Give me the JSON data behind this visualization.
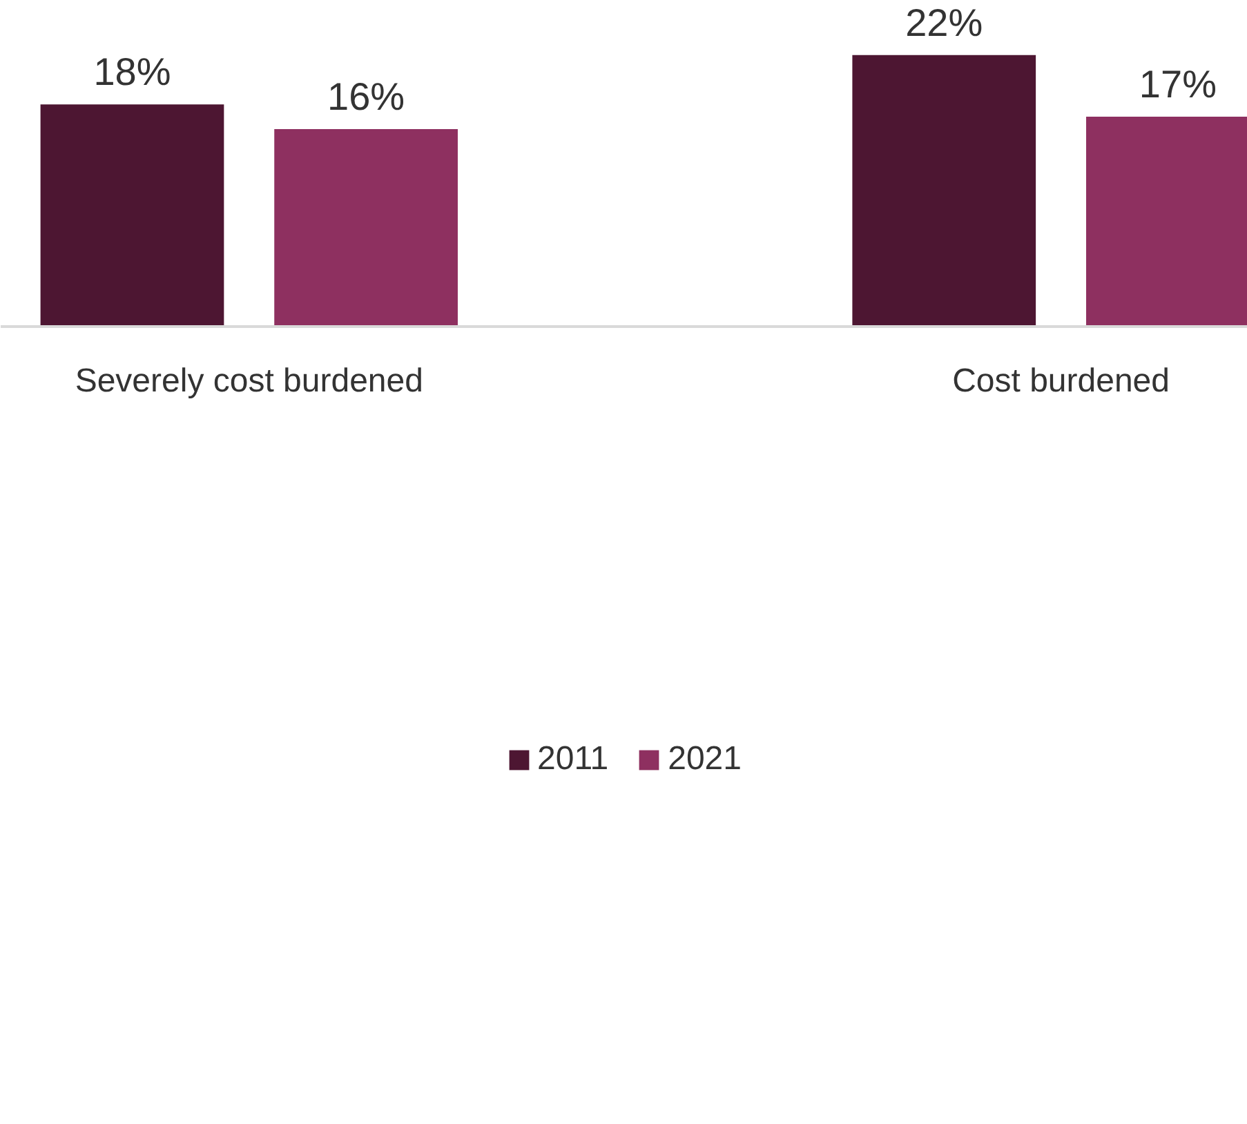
{
  "chart_data": {
    "type": "bar",
    "categories": [
      "Severely cost burdened",
      "Cost burdened"
    ],
    "series": [
      {
        "name": "2011",
        "color": "#4d1632",
        "values": [
          18,
          22
        ],
        "value_labels": [
          "18%",
          "22%"
        ]
      },
      {
        "name": "2021",
        "color": "#8e3060",
        "values": [
          16,
          17
        ],
        "value_labels": [
          "16%",
          "17%"
        ]
      }
    ],
    "grid": false,
    "legend": "bottom"
  }
}
